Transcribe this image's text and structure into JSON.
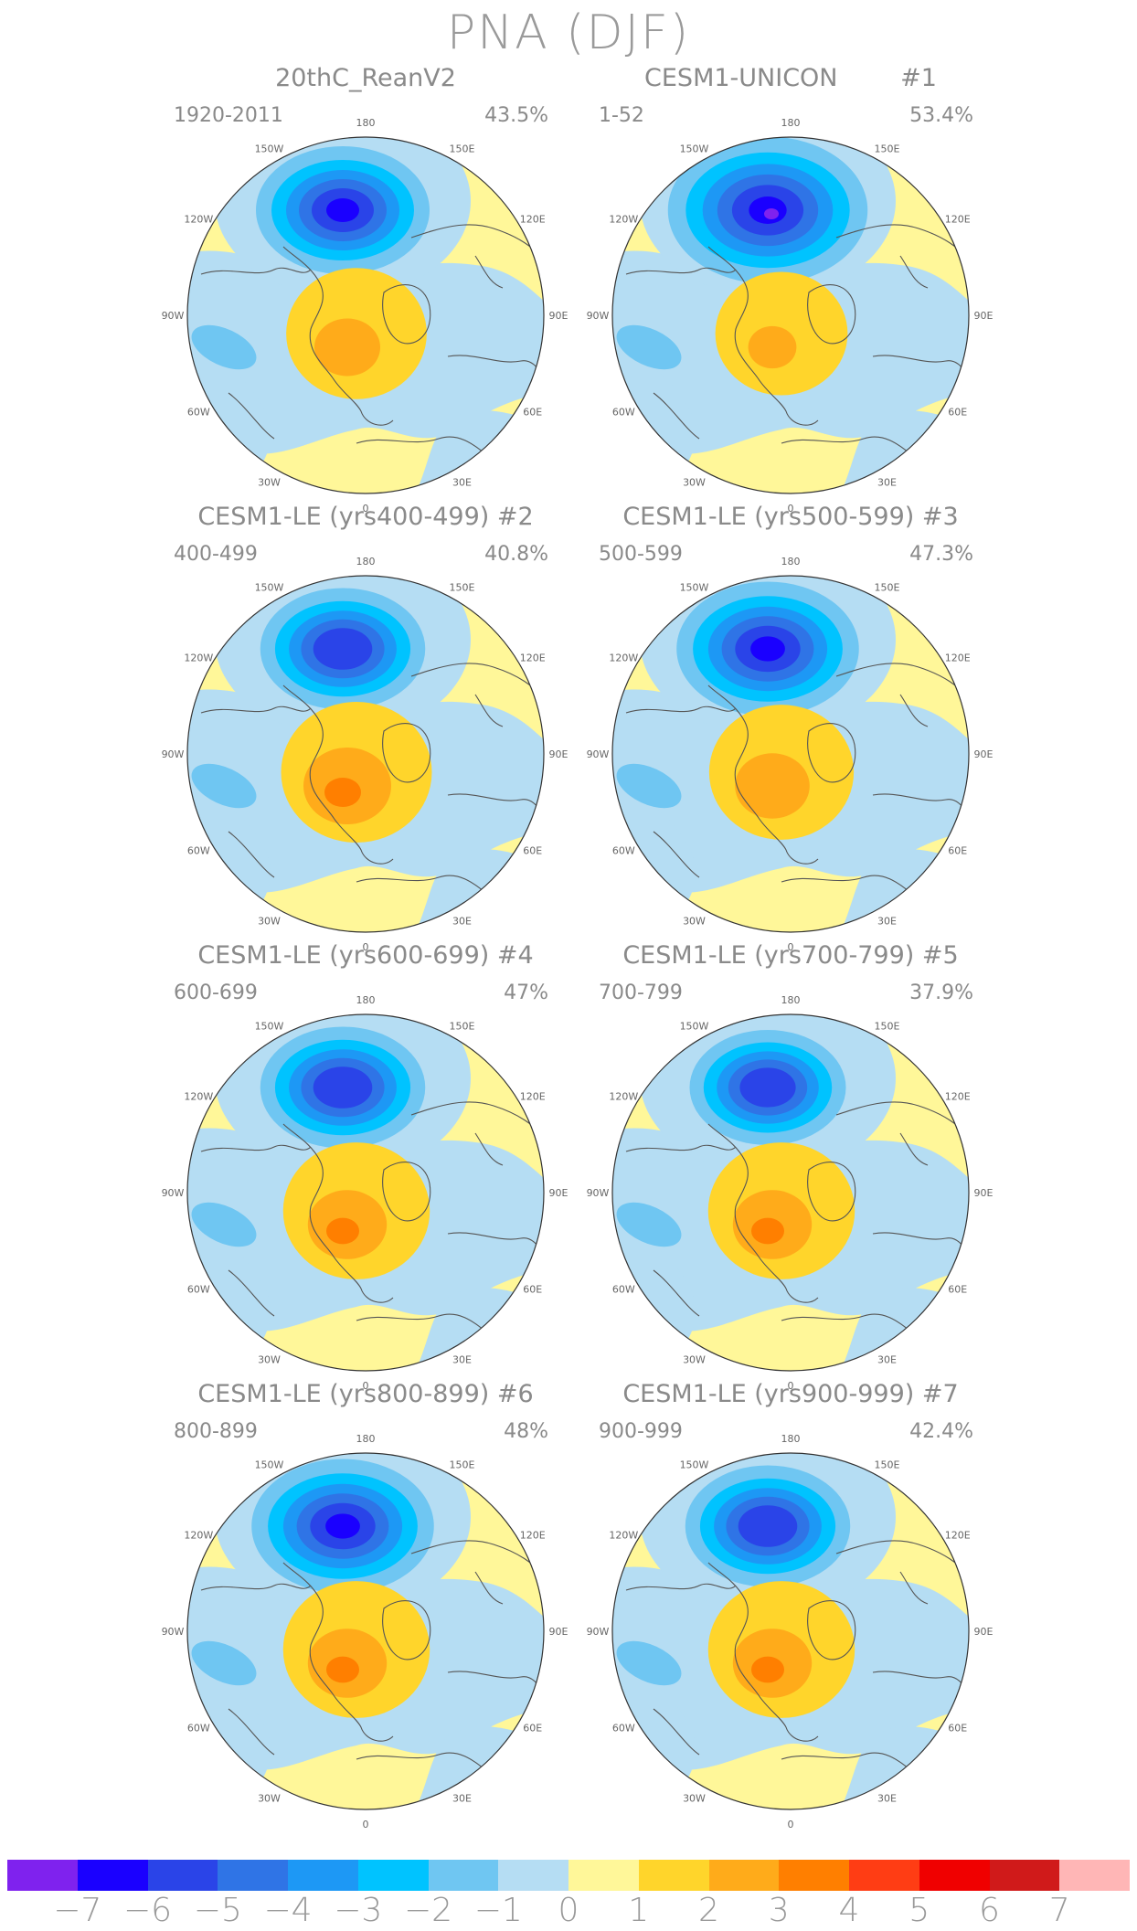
{
  "title": "PNA (DJF)",
  "panels": [
    {
      "title": "20thC_ReanV2",
      "period": "1920-2011",
      "variance": "43.5%",
      "neg_strength": 1.0,
      "pos_strength": 0.75
    },
    {
      "title": "CESM1-UNICON        #1",
      "period": "1-52",
      "variance": "53.4%",
      "neg_strength": 1.15,
      "pos_strength": 0.55
    },
    {
      "title": "CESM1-LE (yrs400-499) #2",
      "period": "400-499",
      "variance": "40.8%",
      "neg_strength": 0.95,
      "pos_strength": 1.0
    },
    {
      "title": "CESM1-LE (yrs500-599) #3",
      "period": "500-599",
      "variance": "47.3%",
      "neg_strength": 1.05,
      "pos_strength": 0.85
    },
    {
      "title": "CESM1-LE (yrs600-699) #4",
      "period": "600-699",
      "variance": "47%",
      "neg_strength": 0.95,
      "pos_strength": 0.9
    },
    {
      "title": "CESM1-LE (yrs700-799) #5",
      "period": "700-799",
      "variance": "37.9%",
      "neg_strength": 0.9,
      "pos_strength": 0.9
    },
    {
      "title": "CESM1-LE (yrs800-899) #6",
      "period": "800-899",
      "variance": "48%",
      "neg_strength": 1.05,
      "pos_strength": 0.9
    },
    {
      "title": "CESM1-LE (yrs900-999) #7",
      "period": "900-999",
      "variance": "42.4%",
      "neg_strength": 0.95,
      "pos_strength": 0.9
    }
  ],
  "lon_labels": [
    "180",
    "150E",
    "120E",
    "90E",
    "60E",
    "30E",
    "0",
    "30W",
    "60W",
    "90W",
    "120W",
    "150W"
  ],
  "colorbar": {
    "colors": [
      "#7f22ee",
      "#1a00ff",
      "#2a44e8",
      "#2f74e6",
      "#1d98f5",
      "#00c3ff",
      "#6fc6f2",
      "#b5ddf3",
      "#fff799",
      "#ffd52b",
      "#ffab1a",
      "#ff7f00",
      "#ff3d14",
      "#f00000",
      "#d01a1a",
      "#ffb6b6"
    ],
    "labels": [
      "-7",
      "-6",
      "-5",
      "-4",
      "-3",
      "-2",
      "-1",
      "0",
      "1",
      "2",
      "3",
      "4",
      "5",
      "6",
      "7"
    ]
  }
}
